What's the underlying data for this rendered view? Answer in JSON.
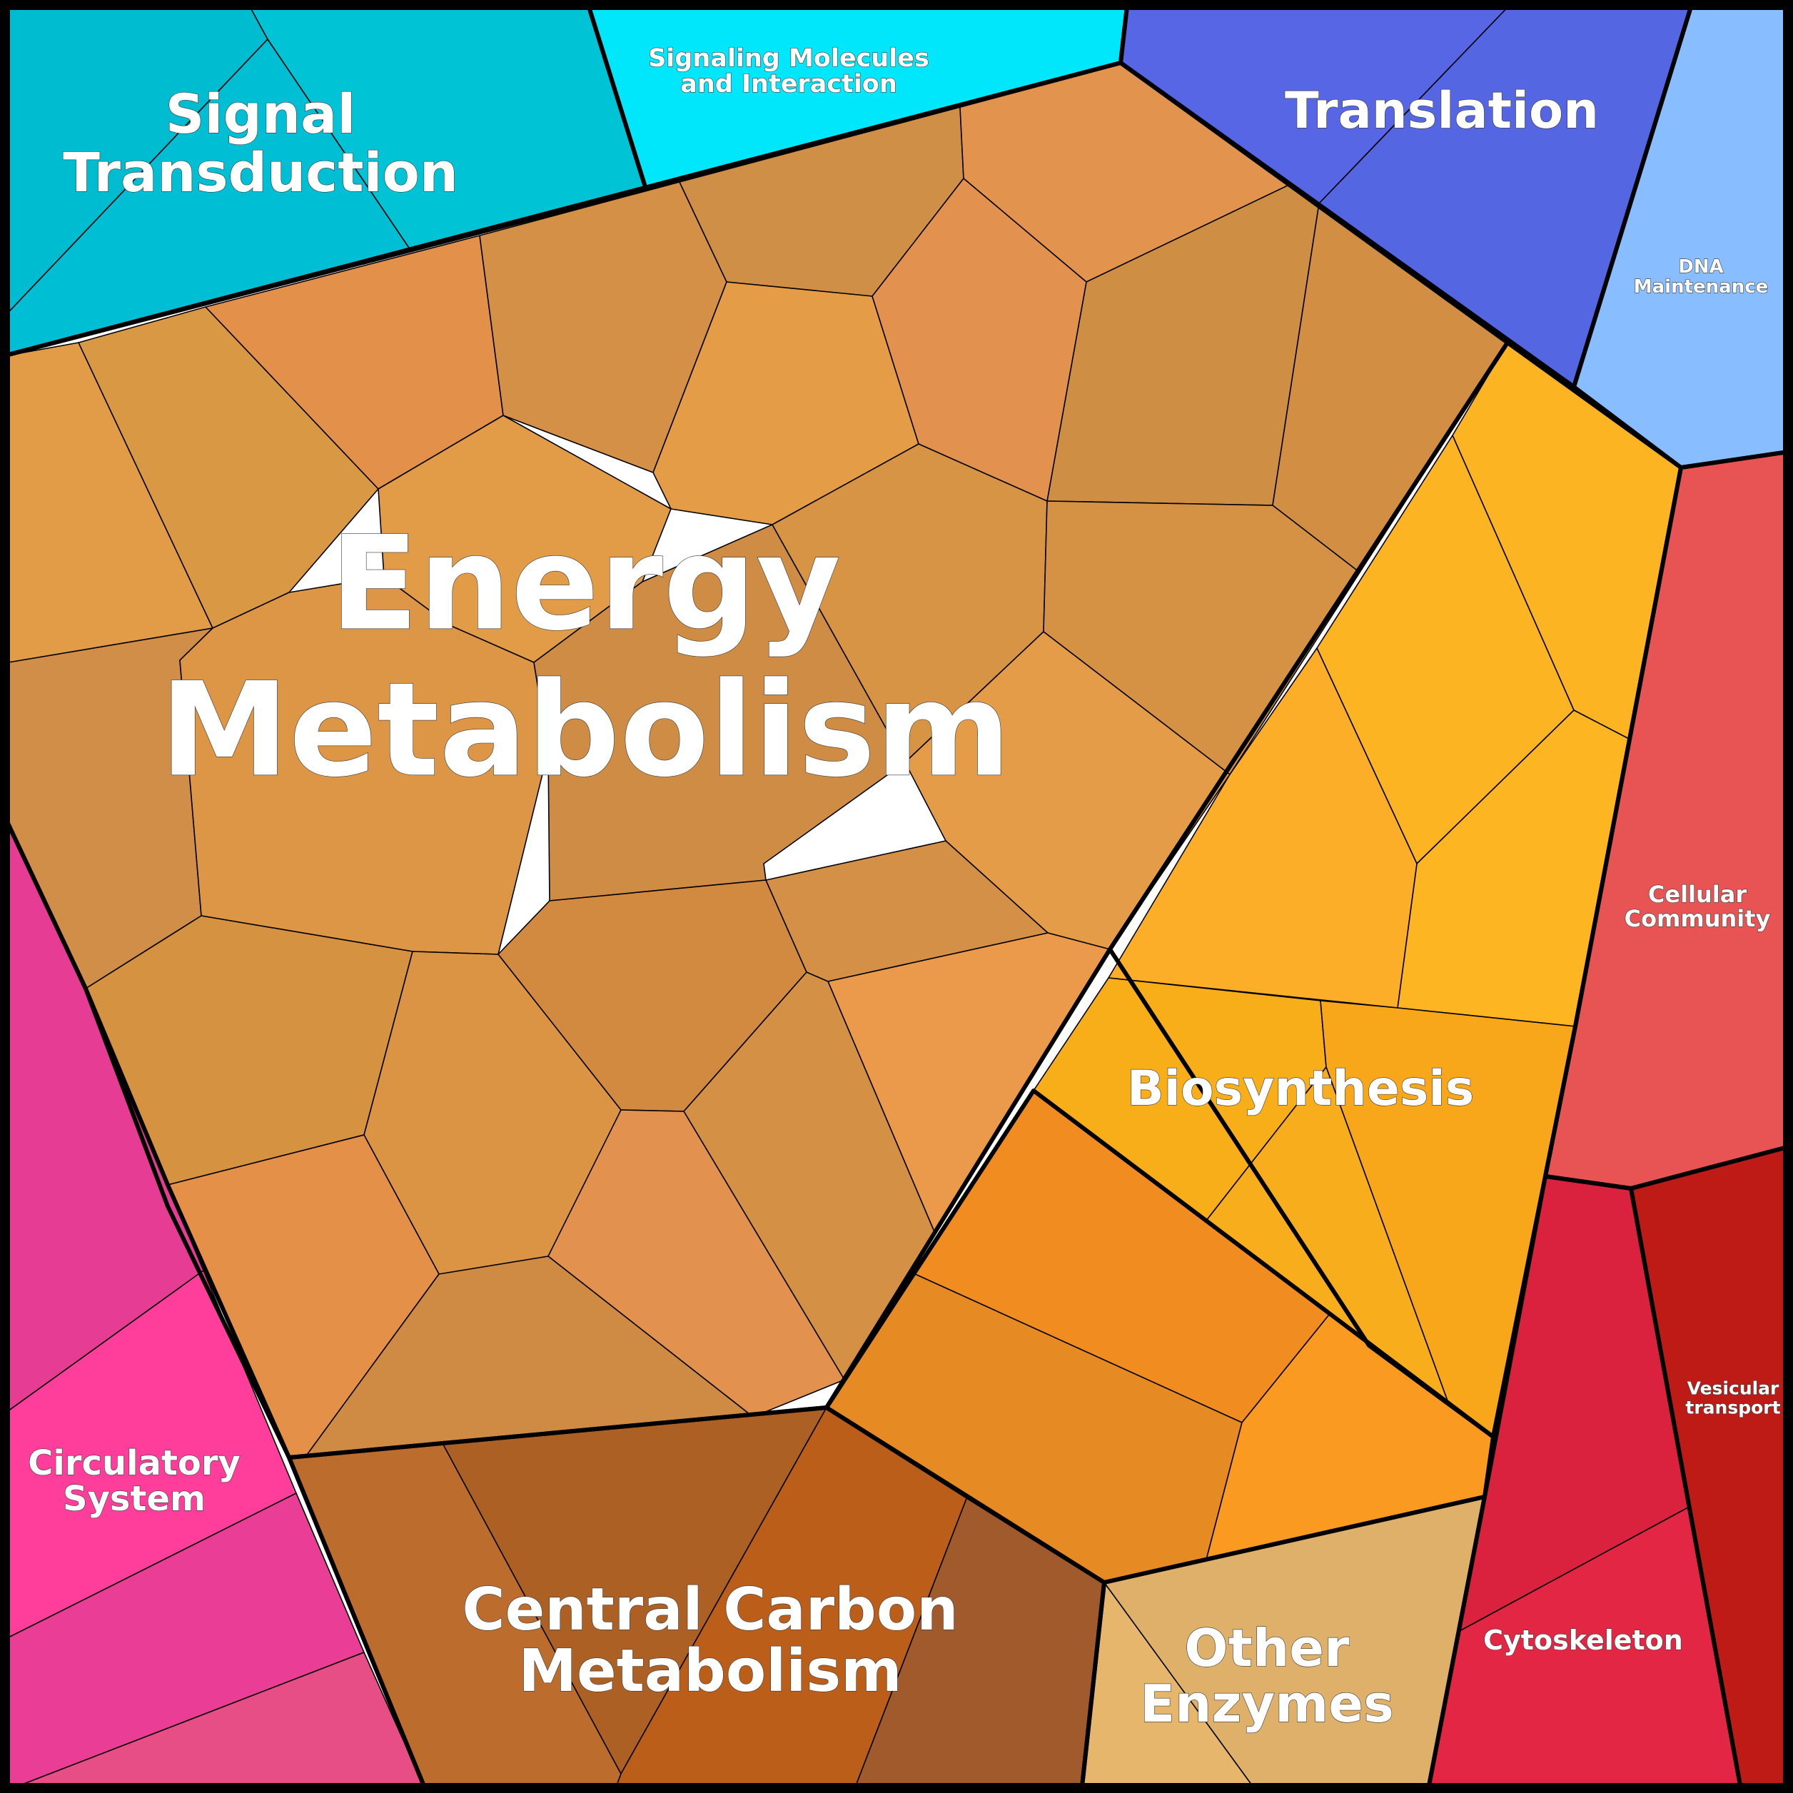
{
  "diagram": {
    "type": "voronoi-treemap",
    "groups": [
      {
        "id": "energy",
        "label_lines": [
          "Energy",
          "Metabolism"
        ],
        "color": "#D89044"
      },
      {
        "id": "signal",
        "label_lines": [
          "Signal",
          "Transduction"
        ],
        "color": "#00C0D4"
      },
      {
        "id": "signaling",
        "label_lines": [
          "Signaling Molecules",
          "and Interaction"
        ],
        "color": "#00E4F8"
      },
      {
        "id": "translation",
        "label_lines": [
          "Translation"
        ],
        "color": "#5566E4"
      },
      {
        "id": "dna",
        "label_lines": [
          "DNA",
          "Maintenance"
        ],
        "color": "#88BEFF"
      },
      {
        "id": "biosynthesis",
        "label_lines": [
          "Biosynthesis"
        ],
        "color": "#F8AE1C"
      },
      {
        "id": "cellular",
        "label_lines": [
          "Cellular",
          "Community"
        ],
        "color": "#E85454"
      },
      {
        "id": "vesicular",
        "label_lines": [
          "Vesicular",
          "transport"
        ],
        "color": "#BE1A16"
      },
      {
        "id": "cytoskeleton",
        "label_lines": [
          "Cytoskeleton"
        ],
        "color": "#E02440"
      },
      {
        "id": "other",
        "label_lines": [
          "Other",
          "Enzymes"
        ],
        "color": "#E4B46C"
      },
      {
        "id": "central",
        "label_lines": [
          "Central Carbon",
          "Metabolism"
        ],
        "color": "#B8682C"
      },
      {
        "id": "circulatory",
        "label_lines": [
          "Circulatory",
          "System"
        ],
        "color": "#F0409A"
      }
    ]
  }
}
